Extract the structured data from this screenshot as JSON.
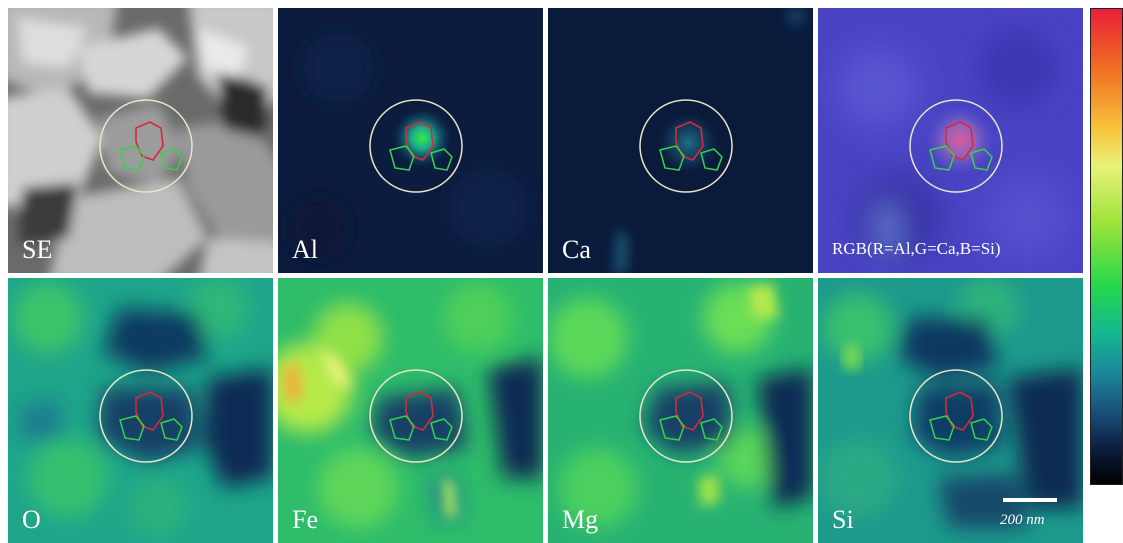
{
  "panels": [
    {
      "label": "SE"
    },
    {
      "label": "Al"
    },
    {
      "label": "Ca"
    },
    {
      "label": "RGB(R=Al,G=Ca,B=Si)"
    },
    {
      "label": "O"
    },
    {
      "label": "Fe"
    },
    {
      "label": "Mg"
    },
    {
      "label": "Si"
    }
  ],
  "scale_bar": {
    "label": "200 nm"
  },
  "colors": {
    "circle": "#e8e6c8",
    "red_outline": "#d62a3a",
    "green_outline": "#36d24a"
  }
}
